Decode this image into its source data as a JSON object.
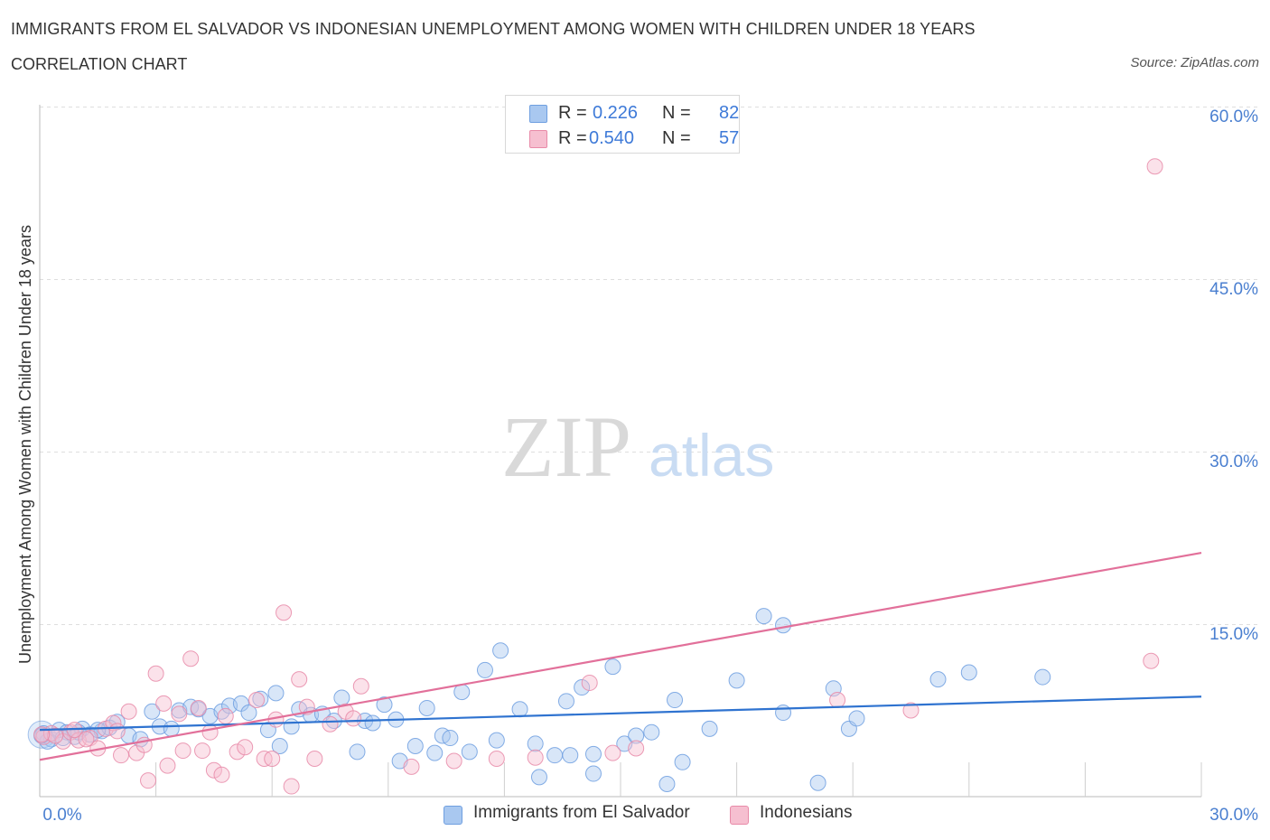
{
  "title": "IMMIGRANTS FROM EL SALVADOR VS INDONESIAN UNEMPLOYMENT AMONG WOMEN WITH CHILDREN UNDER 18 YEARS",
  "subtitle": "CORRELATION CHART",
  "source": "Source: ZipAtlas.com",
  "watermark": {
    "zip": "ZIP",
    "atlas": "atlas"
  },
  "legend": {
    "rows": [
      {
        "r_label": "R =",
        "r_value": "0.226",
        "n_label": "N =",
        "n_value": "82",
        "color": "#a9c8f0",
        "border": "#6f9fe0"
      },
      {
        "r_label": "R =",
        "r_value": "0.540",
        "n_label": "N =",
        "n_value": "57",
        "color": "#f6bfd0",
        "border": "#e88aa8"
      }
    ]
  },
  "bottom_legend": [
    {
      "label": "Immigrants from El Salvador",
      "color": "#a9c8f0",
      "border": "#6f9fe0"
    },
    {
      "label": "Indonesians",
      "color": "#f6bfd0",
      "border": "#e88aa8"
    }
  ],
  "chart_data": {
    "type": "scatter",
    "title": "IMMIGRANTS FROM EL SALVADOR VS INDONESIAN UNEMPLOYMENT AMONG WOMEN WITH CHILDREN UNDER 18 YEARS",
    "subtitle": "CORRELATION CHART",
    "xlabel": "",
    "ylabel": "Unemployment Among Women with Children Under 18 years",
    "xlim": [
      0,
      30
    ],
    "ylim": [
      0,
      60
    ],
    "x_tick_labels": [
      "0.0%",
      "30.0%"
    ],
    "y_ticks": [
      15,
      30,
      45,
      60
    ],
    "y_tick_labels": [
      "15.0%",
      "30.0%",
      "45.0%",
      "60.0%"
    ],
    "grid": true,
    "legend_position": "top-center",
    "series": [
      {
        "name": "Immigrants from El Salvador",
        "color": "#6f9fe0",
        "fill": "#a9c8f0",
        "trend": {
          "x": [
            0,
            30
          ],
          "y": [
            5.8,
            8.7
          ]
        },
        "points": [
          [
            0.1,
            5.5
          ],
          [
            0.3,
            5.0
          ],
          [
            0.5,
            5.8
          ],
          [
            0.7,
            5.6
          ],
          [
            0.9,
            5.2
          ],
          [
            1.1,
            5.9
          ],
          [
            1.3,
            5.4
          ],
          [
            1.6,
            5.7
          ],
          [
            1.8,
            6.0
          ],
          [
            2.0,
            6.5
          ],
          [
            2.3,
            5.3
          ],
          [
            2.6,
            5.0
          ],
          [
            2.9,
            7.4
          ],
          [
            3.1,
            6.1
          ],
          [
            3.4,
            5.9
          ],
          [
            3.6,
            7.5
          ],
          [
            3.9,
            7.8
          ],
          [
            4.1,
            7.6
          ],
          [
            4.4,
            7.0
          ],
          [
            4.7,
            7.4
          ],
          [
            4.9,
            7.9
          ],
          [
            5.2,
            8.1
          ],
          [
            5.4,
            7.3
          ],
          [
            5.7,
            8.5
          ],
          [
            5.9,
            5.8
          ],
          [
            6.2,
            4.4
          ],
          [
            6.1,
            9.0
          ],
          [
            6.5,
            6.1
          ],
          [
            6.7,
            7.6
          ],
          [
            7.0,
            7.1
          ],
          [
            7.3,
            7.2
          ],
          [
            7.6,
            6.6
          ],
          [
            7.8,
            8.6
          ],
          [
            8.2,
            3.9
          ],
          [
            8.4,
            6.6
          ],
          [
            8.6,
            6.4
          ],
          [
            8.9,
            8.0
          ],
          [
            9.2,
            6.7
          ],
          [
            9.3,
            3.1
          ],
          [
            9.7,
            4.4
          ],
          [
            10.0,
            7.7
          ],
          [
            10.2,
            3.8
          ],
          [
            10.4,
            5.3
          ],
          [
            10.6,
            5.1
          ],
          [
            10.9,
            9.1
          ],
          [
            11.1,
            3.9
          ],
          [
            11.5,
            11.0
          ],
          [
            11.8,
            4.9
          ],
          [
            11.9,
            12.7
          ],
          [
            12.4,
            7.6
          ],
          [
            12.8,
            4.6
          ],
          [
            12.9,
            1.7
          ],
          [
            13.3,
            3.6
          ],
          [
            13.6,
            8.3
          ],
          [
            13.7,
            3.6
          ],
          [
            14.0,
            9.5
          ],
          [
            14.3,
            2.0
          ],
          [
            14.3,
            3.7
          ],
          [
            14.8,
            11.3
          ],
          [
            15.1,
            4.6
          ],
          [
            15.4,
            5.3
          ],
          [
            15.8,
            5.6
          ],
          [
            16.2,
            1.1
          ],
          [
            16.4,
            8.4
          ],
          [
            16.6,
            3.0
          ],
          [
            17.3,
            5.9
          ],
          [
            18.0,
            10.1
          ],
          [
            18.7,
            15.7
          ],
          [
            19.2,
            7.3
          ],
          [
            19.2,
            14.9
          ],
          [
            20.1,
            1.2
          ],
          [
            20.5,
            9.4
          ],
          [
            20.9,
            5.9
          ],
          [
            21.1,
            6.8
          ],
          [
            23.2,
            10.2
          ],
          [
            24.0,
            10.8
          ],
          [
            25.9,
            10.4
          ],
          [
            0.2,
            4.8
          ],
          [
            0.6,
            5.1
          ],
          [
            1.0,
            5.6
          ],
          [
            1.5,
            5.8
          ],
          [
            0.05,
            5.3
          ]
        ]
      },
      {
        "name": "Indonesians",
        "color": "#e88aa8",
        "fill": "#f6bfd0",
        "trend": {
          "x": [
            0,
            30
          ],
          "y": [
            3.2,
            21.2
          ]
        },
        "points": [
          [
            0.1,
            5.2
          ],
          [
            0.3,
            5.5
          ],
          [
            0.6,
            4.8
          ],
          [
            0.8,
            5.6
          ],
          [
            1.0,
            4.9
          ],
          [
            1.3,
            5.1
          ],
          [
            1.5,
            4.2
          ],
          [
            1.7,
            5.9
          ],
          [
            1.9,
            6.4
          ],
          [
            2.1,
            3.6
          ],
          [
            2.3,
            7.4
          ],
          [
            2.5,
            3.8
          ],
          [
            2.7,
            4.5
          ],
          [
            2.8,
            1.4
          ],
          [
            3.0,
            10.7
          ],
          [
            3.2,
            8.1
          ],
          [
            3.3,
            2.7
          ],
          [
            3.6,
            7.2
          ],
          [
            3.7,
            4.0
          ],
          [
            3.9,
            12.0
          ],
          [
            4.1,
            7.7
          ],
          [
            4.2,
            4.0
          ],
          [
            4.4,
            5.6
          ],
          [
            4.5,
            2.3
          ],
          [
            4.7,
            1.9
          ],
          [
            4.8,
            7.0
          ],
          [
            5.1,
            3.9
          ],
          [
            5.3,
            4.3
          ],
          [
            5.6,
            8.4
          ],
          [
            5.8,
            3.3
          ],
          [
            6.0,
            3.3
          ],
          [
            6.1,
            6.7
          ],
          [
            6.3,
            16.0
          ],
          [
            6.5,
            0.9
          ],
          [
            6.7,
            10.2
          ],
          [
            6.9,
            7.8
          ],
          [
            7.1,
            3.3
          ],
          [
            7.5,
            6.3
          ],
          [
            7.9,
            7.4
          ],
          [
            8.1,
            6.8
          ],
          [
            8.3,
            9.6
          ],
          [
            9.6,
            2.6
          ],
          [
            10.7,
            3.1
          ],
          [
            11.8,
            3.3
          ],
          [
            12.8,
            3.4
          ],
          [
            14.2,
            9.9
          ],
          [
            14.8,
            3.8
          ],
          [
            15.4,
            4.2
          ],
          [
            20.6,
            8.4
          ],
          [
            22.5,
            7.5
          ],
          [
            28.7,
            11.8
          ],
          [
            28.8,
            54.8
          ],
          [
            0.4,
            5.3
          ],
          [
            0.9,
            5.8
          ],
          [
            1.2,
            5.0
          ],
          [
            2.0,
            5.7
          ],
          [
            0.05,
            5.4
          ]
        ]
      }
    ]
  }
}
